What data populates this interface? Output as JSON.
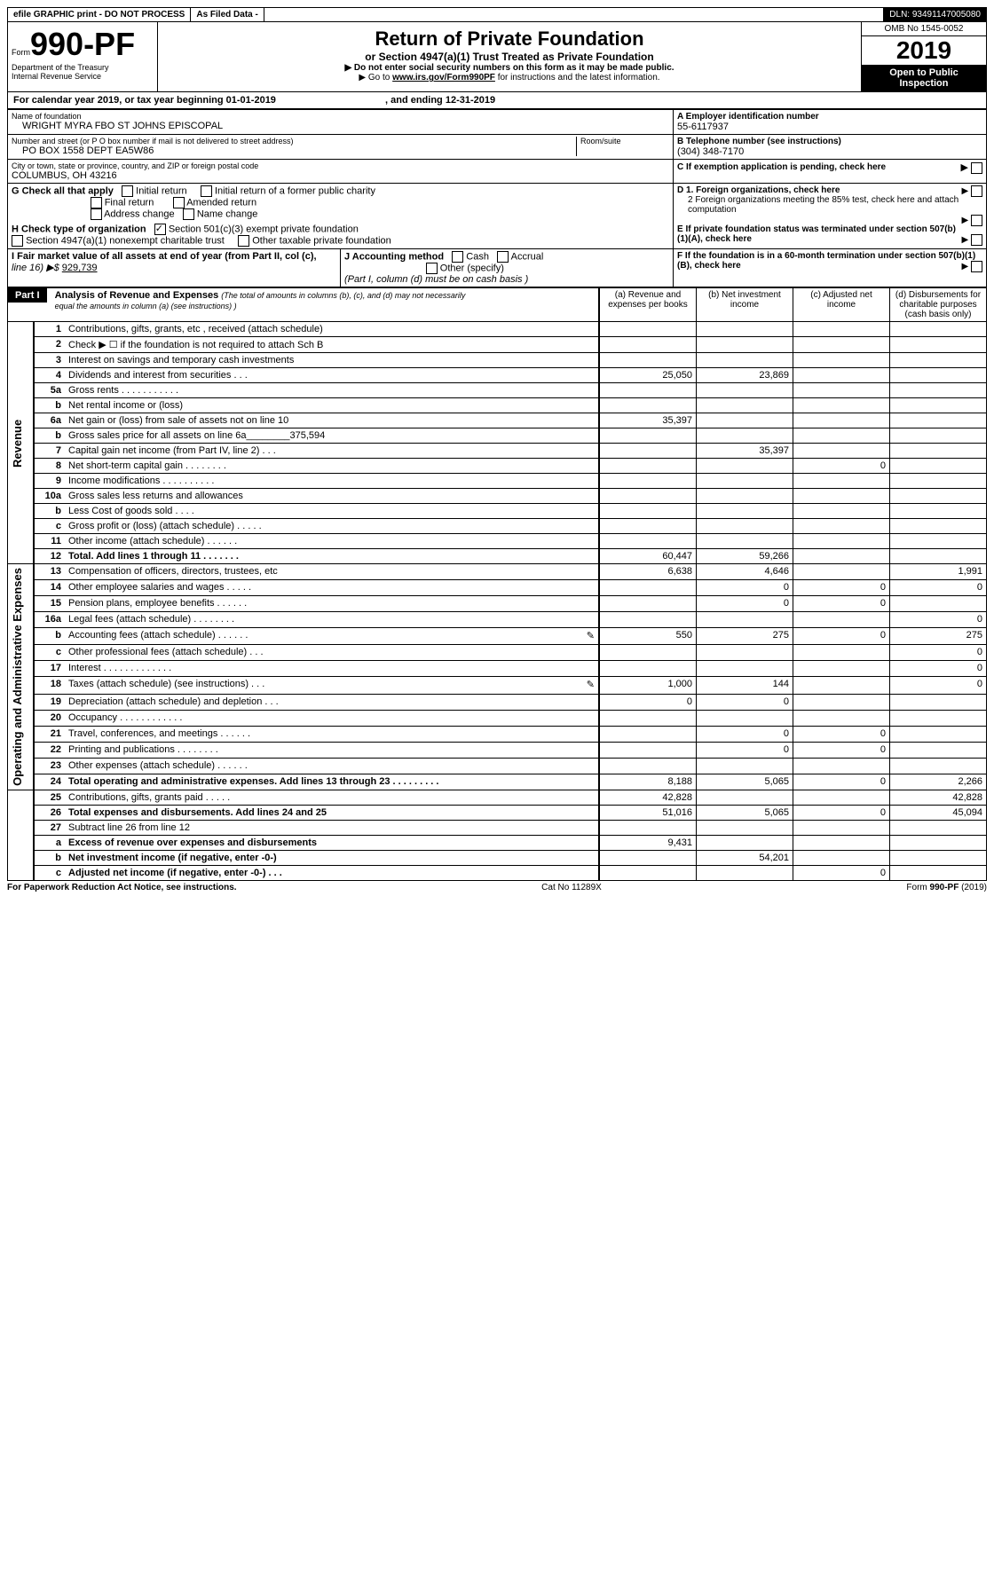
{
  "header_strip": {
    "efile": "efile GRAPHIC print - DO NOT PROCESS",
    "as_filed": "As Filed Data -",
    "dln_label": "DLN:",
    "dln": "93491147005080"
  },
  "form_header": {
    "form_word": "Form",
    "form_num": "990-PF",
    "dept": "Department of the Treasury",
    "irs": "Internal Revenue Service",
    "title": "Return of Private Foundation",
    "subtitle": "or Section 4947(a)(1) Trust Treated as Private Foundation",
    "inst1": "▶ Do not enter social security numbers on this form as it may be made public.",
    "inst2_pre": "▶ Go to ",
    "inst2_link": "www.irs.gov/Form990PF",
    "inst2_post": " for instructions and the latest information.",
    "omb": "OMB No 1545-0052",
    "year": "2019",
    "open": "Open to Public Inspection"
  },
  "cal_year": {
    "pre": "For calendar year 2019, or tax year beginning ",
    "begin": "01-01-2019",
    "mid": ", and ending ",
    "end": "12-31-2019"
  },
  "entity": {
    "name_label": "Name of foundation",
    "name": "WRIGHT MYRA FBO ST JOHNS EPISCOPAL",
    "addr_label": "Number and street (or P O  box number if mail is not delivered to street address)",
    "addr": "PO BOX 1558 DEPT EA5W86",
    "room_label": "Room/suite",
    "city_label": "City or town, state or province, country, and ZIP or foreign postal code",
    "city": "COLUMBUS, OH  43216",
    "a_label": "A Employer identification number",
    "a_val": "55-6117937",
    "b_label": "B Telephone number (see instructions)",
    "b_val": "(304) 348-7170",
    "c_label": "C If exemption application is pending, check here",
    "d1_label": "D 1. Foreign organizations, check here",
    "d2_label": "2 Foreign organizations meeting the 85% test, check here and attach computation",
    "e_label": "E If private foundation status was terminated under section 507(b)(1)(A), check here",
    "f_label": "F If the foundation is in a 60-month termination under section 507(b)(1)(B), check here"
  },
  "g": {
    "label": "G Check all that apply",
    "opt1": "Initial return",
    "opt2": "Initial return of a former public charity",
    "opt3": "Final return",
    "opt4": "Amended return",
    "opt5": "Address change",
    "opt6": "Name change"
  },
  "h": {
    "label": "H Check type of organization",
    "opt1": "Section 501(c)(3) exempt private foundation",
    "opt2": "Section 4947(a)(1) nonexempt charitable trust",
    "opt3": "Other taxable private foundation"
  },
  "i": {
    "label": "I Fair market value of all assets at end of year (from Part II, col  (c),",
    "line": "line 16) ▶$",
    "val": "929,739"
  },
  "j": {
    "label": "J Accounting method",
    "cash": "Cash",
    "accrual": "Accrual",
    "other": "Other (specify)",
    "note": "(Part I, column (d) must be on cash basis )"
  },
  "part1": {
    "label": "Part I",
    "title": "Analysis of Revenue and Expenses",
    "title_note": "(The total of amounts in columns (b), (c), and (d) may not necessarily equal the amounts in column (a) (see instructions) )",
    "col_a": "(a) Revenue and expenses per books",
    "col_b": "(b) Net investment income",
    "col_c": "(c) Adjusted net income",
    "col_d": "(d) Disbursements for charitable purposes (cash basis only)",
    "rev_label": "Revenue",
    "exp_label": "Operating and Administrative Expenses"
  },
  "rows": [
    {
      "n": "1",
      "d": "Contributions, gifts, grants, etc , received (attach schedule)",
      "a": "",
      "b": "",
      "c": "",
      "e": ""
    },
    {
      "n": "2",
      "d": "Check ▶ ☐ if the foundation is not required to attach Sch B",
      "a": "",
      "b": "",
      "c": "",
      "e": ""
    },
    {
      "n": "3",
      "d": "Interest on savings and temporary cash investments",
      "a": "",
      "b": "",
      "c": "",
      "e": ""
    },
    {
      "n": "4",
      "d": "Dividends and interest from securities  .  .  .",
      "a": "25,050",
      "b": "23,869",
      "c": "",
      "e": ""
    },
    {
      "n": "5a",
      "d": "Gross rents  .  .  .  .  .  .  .  .  .  .  .",
      "a": "",
      "b": "",
      "c": "",
      "e": ""
    },
    {
      "n": "b",
      "d": "Net rental income or (loss)",
      "a": "",
      "b": "",
      "c": "",
      "e": ""
    },
    {
      "n": "6a",
      "d": "Net gain or (loss) from sale of assets not on line 10",
      "a": "35,397",
      "b": "",
      "c": "",
      "e": ""
    },
    {
      "n": "b",
      "d": "Gross sales price for all assets on line 6a________375,594",
      "a": "",
      "b": "",
      "c": "",
      "e": ""
    },
    {
      "n": "7",
      "d": "Capital gain net income (from Part IV, line 2)  .  .  .",
      "a": "",
      "b": "35,397",
      "c": "",
      "e": ""
    },
    {
      "n": "8",
      "d": "Net short-term capital gain  .  .  .  .  .  .  .  .",
      "a": "",
      "b": "",
      "c": "0",
      "e": ""
    },
    {
      "n": "9",
      "d": "Income modifications .  .  .  .  .  .  .  .  .  .",
      "a": "",
      "b": "",
      "c": "",
      "e": ""
    },
    {
      "n": "10a",
      "d": "Gross sales less returns and allowances",
      "a": "",
      "b": "",
      "c": "",
      "e": ""
    },
    {
      "n": "b",
      "d": "Less  Cost of goods sold  .  .  .  .",
      "a": "",
      "b": "",
      "c": "",
      "e": ""
    },
    {
      "n": "c",
      "d": "Gross profit or (loss) (attach schedule)  .  .  .  .  .",
      "a": "",
      "b": "",
      "c": "",
      "e": ""
    },
    {
      "n": "11",
      "d": "Other income (attach schedule)  .  .  .  .  .  .",
      "a": "",
      "b": "",
      "c": "",
      "e": ""
    },
    {
      "n": "12",
      "d": "Total. Add lines 1 through 11  .  .  .  .  .  .  .",
      "a": "60,447",
      "b": "59,266",
      "c": "",
      "e": "",
      "bold": true
    },
    {
      "n": "13",
      "d": "Compensation of officers, directors, trustees, etc",
      "a": "6,638",
      "b": "4,646",
      "c": "",
      "e": "1,991"
    },
    {
      "n": "14",
      "d": "Other employee salaries and wages  .  .  .  .  .",
      "a": "",
      "b": "0",
      "c": "0",
      "e": "0"
    },
    {
      "n": "15",
      "d": "Pension plans, employee benefits  .  .  .  .  .  .",
      "a": "",
      "b": "0",
      "c": "0",
      "e": ""
    },
    {
      "n": "16a",
      "d": "Legal fees (attach schedule) .  .  .  .  .  .  .  .",
      "a": "",
      "b": "",
      "c": "",
      "e": "0"
    },
    {
      "n": "b",
      "d": "Accounting fees (attach schedule) .  .  .  .  .  .",
      "a": "550",
      "b": "275",
      "c": "0",
      "e": "275",
      "icon": true
    },
    {
      "n": "c",
      "d": "Other professional fees (attach schedule)  .  .  .",
      "a": "",
      "b": "",
      "c": "",
      "e": "0"
    },
    {
      "n": "17",
      "d": "Interest  .  .  .  .  .  .  .  .  .  .  .  .  .",
      "a": "",
      "b": "",
      "c": "",
      "e": "0"
    },
    {
      "n": "18",
      "d": "Taxes (attach schedule) (see instructions)  .  .  .",
      "a": "1,000",
      "b": "144",
      "c": "",
      "e": "0",
      "icon": true
    },
    {
      "n": "19",
      "d": "Depreciation (attach schedule) and depletion  .  .  .",
      "a": "0",
      "b": "0",
      "c": "",
      "e": ""
    },
    {
      "n": "20",
      "d": "Occupancy  .  .  .  .  .  .  .  .  .  .  .  .",
      "a": "",
      "b": "",
      "c": "",
      "e": ""
    },
    {
      "n": "21",
      "d": "Travel, conferences, and meetings .  .  .  .  .  .",
      "a": "",
      "b": "0",
      "c": "0",
      "e": ""
    },
    {
      "n": "22",
      "d": "Printing and publications .  .  .  .  .  .  .  .",
      "a": "",
      "b": "0",
      "c": "0",
      "e": ""
    },
    {
      "n": "23",
      "d": "Other expenses (attach schedule) .  .  .  .  .  .",
      "a": "",
      "b": "",
      "c": "",
      "e": ""
    },
    {
      "n": "24",
      "d": "Total operating and administrative expenses. Add lines 13 through 23  .  .  .  .  .  .  .  .  .",
      "a": "8,188",
      "b": "5,065",
      "c": "0",
      "e": "2,266",
      "bold": true
    },
    {
      "n": "25",
      "d": "Contributions, gifts, grants paid  .  .  .  .  .",
      "a": "42,828",
      "b": "",
      "c": "",
      "e": "42,828"
    },
    {
      "n": "26",
      "d": "Total expenses and disbursements. Add lines 24 and 25",
      "a": "51,016",
      "b": "5,065",
      "c": "0",
      "e": "45,094",
      "bold": true
    },
    {
      "n": "27",
      "d": "Subtract line 26 from line 12",
      "a": "",
      "b": "",
      "c": "",
      "e": ""
    },
    {
      "n": "a",
      "d": "Excess of revenue over expenses and disbursements",
      "a": "9,431",
      "b": "",
      "c": "",
      "e": "",
      "bold": true
    },
    {
      "n": "b",
      "d": "Net investment income (if negative, enter -0-)",
      "a": "",
      "b": "54,201",
      "c": "",
      "e": "",
      "bold": true
    },
    {
      "n": "c",
      "d": "Adjusted net income (if negative, enter -0-)  .  .  .",
      "a": "",
      "b": "",
      "c": "0",
      "e": "",
      "bold": true
    }
  ],
  "footer": {
    "left": "For Paperwork Reduction Act Notice, see instructions.",
    "mid": "Cat  No  11289X",
    "right": "Form 990-PF (2019)"
  }
}
